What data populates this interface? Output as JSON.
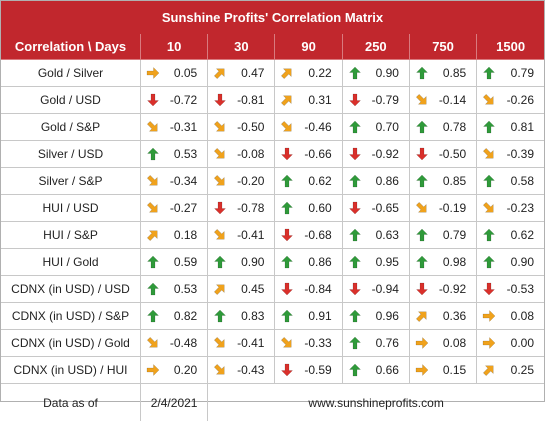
{
  "title": "Sunshine Profits' Correlation Matrix",
  "header": {
    "corner": "Correlation \\ Days",
    "periods": [
      "10",
      "30",
      "90",
      "250",
      "750",
      "1500"
    ]
  },
  "colors": {
    "header_bg": "#c1272d",
    "up": "#2f9a3a",
    "down": "#d9302b",
    "neutral": "#f0a21c"
  },
  "rows": [
    {
      "label": "Gold / Silver",
      "cells": [
        {
          "value": "0.05",
          "arrow": "right"
        },
        {
          "value": "0.47",
          "arrow": "up-right"
        },
        {
          "value": "0.22",
          "arrow": "up-right"
        },
        {
          "value": "0.90",
          "arrow": "up"
        },
        {
          "value": "0.85",
          "arrow": "up"
        },
        {
          "value": "0.79",
          "arrow": "up"
        }
      ]
    },
    {
      "label": "Gold / USD",
      "cells": [
        {
          "value": "-0.72",
          "arrow": "down"
        },
        {
          "value": "-0.81",
          "arrow": "down"
        },
        {
          "value": "0.31",
          "arrow": "up-right"
        },
        {
          "value": "-0.79",
          "arrow": "down"
        },
        {
          "value": "-0.14",
          "arrow": "down-right"
        },
        {
          "value": "-0.26",
          "arrow": "down-right"
        }
      ]
    },
    {
      "label": "Gold / S&P",
      "cells": [
        {
          "value": "-0.31",
          "arrow": "down-right"
        },
        {
          "value": "-0.50",
          "arrow": "down-right"
        },
        {
          "value": "-0.46",
          "arrow": "down-right"
        },
        {
          "value": "0.70",
          "arrow": "up"
        },
        {
          "value": "0.78",
          "arrow": "up"
        },
        {
          "value": "0.81",
          "arrow": "up"
        }
      ]
    },
    {
      "label": "Silver / USD",
      "cells": [
        {
          "value": "0.53",
          "arrow": "up"
        },
        {
          "value": "-0.08",
          "arrow": "down-right"
        },
        {
          "value": "-0.66",
          "arrow": "down"
        },
        {
          "value": "-0.92",
          "arrow": "down"
        },
        {
          "value": "-0.50",
          "arrow": "down"
        },
        {
          "value": "-0.39",
          "arrow": "down-right"
        }
      ]
    },
    {
      "label": "Silver / S&P",
      "cells": [
        {
          "value": "-0.34",
          "arrow": "down-right"
        },
        {
          "value": "-0.20",
          "arrow": "down-right"
        },
        {
          "value": "0.62",
          "arrow": "up"
        },
        {
          "value": "0.86",
          "arrow": "up"
        },
        {
          "value": "0.85",
          "arrow": "up"
        },
        {
          "value": "0.58",
          "arrow": "up"
        }
      ]
    },
    {
      "label": "HUI / USD",
      "cells": [
        {
          "value": "-0.27",
          "arrow": "down-right"
        },
        {
          "value": "-0.78",
          "arrow": "down"
        },
        {
          "value": "0.60",
          "arrow": "up"
        },
        {
          "value": "-0.65",
          "arrow": "down"
        },
        {
          "value": "-0.19",
          "arrow": "down-right"
        },
        {
          "value": "-0.23",
          "arrow": "down-right"
        }
      ]
    },
    {
      "label": "HUI / S&P",
      "cells": [
        {
          "value": "0.18",
          "arrow": "up-right"
        },
        {
          "value": "-0.41",
          "arrow": "down-right"
        },
        {
          "value": "-0.68",
          "arrow": "down"
        },
        {
          "value": "0.63",
          "arrow": "up"
        },
        {
          "value": "0.79",
          "arrow": "up"
        },
        {
          "value": "0.62",
          "arrow": "up"
        }
      ]
    },
    {
      "label": "HUI / Gold",
      "cells": [
        {
          "value": "0.59",
          "arrow": "up"
        },
        {
          "value": "0.90",
          "arrow": "up"
        },
        {
          "value": "0.86",
          "arrow": "up"
        },
        {
          "value": "0.95",
          "arrow": "up"
        },
        {
          "value": "0.98",
          "arrow": "up"
        },
        {
          "value": "0.90",
          "arrow": "up"
        }
      ]
    },
    {
      "label": "CDNX (in USD) / USD",
      "cells": [
        {
          "value": "0.53",
          "arrow": "up"
        },
        {
          "value": "0.45",
          "arrow": "up-right"
        },
        {
          "value": "-0.84",
          "arrow": "down"
        },
        {
          "value": "-0.94",
          "arrow": "down"
        },
        {
          "value": "-0.92",
          "arrow": "down"
        },
        {
          "value": "-0.53",
          "arrow": "down"
        }
      ]
    },
    {
      "label": "CDNX (in USD) / S&P",
      "cells": [
        {
          "value": "0.82",
          "arrow": "up"
        },
        {
          "value": "0.83",
          "arrow": "up"
        },
        {
          "value": "0.91",
          "arrow": "up"
        },
        {
          "value": "0.96",
          "arrow": "up"
        },
        {
          "value": "0.36",
          "arrow": "up-right"
        },
        {
          "value": "0.08",
          "arrow": "right"
        }
      ]
    },
    {
      "label": "CDNX (in USD) / Gold",
      "cells": [
        {
          "value": "-0.48",
          "arrow": "down-right"
        },
        {
          "value": "-0.41",
          "arrow": "down-right"
        },
        {
          "value": "-0.33",
          "arrow": "down-right"
        },
        {
          "value": "0.76",
          "arrow": "up"
        },
        {
          "value": "0.08",
          "arrow": "right"
        },
        {
          "value": "0.00",
          "arrow": "right"
        }
      ]
    },
    {
      "label": "CDNX (in USD) / HUI",
      "cells": [
        {
          "value": "0.20",
          "arrow": "right"
        },
        {
          "value": "-0.43",
          "arrow": "down-right"
        },
        {
          "value": "-0.59",
          "arrow": "down"
        },
        {
          "value": "0.66",
          "arrow": "up"
        },
        {
          "value": "0.15",
          "arrow": "right"
        },
        {
          "value": "0.25",
          "arrow": "up-right"
        }
      ]
    }
  ],
  "footer": {
    "label": "Data as of",
    "date": "2/4/2021",
    "website": "www.sunshineprofits.com"
  }
}
